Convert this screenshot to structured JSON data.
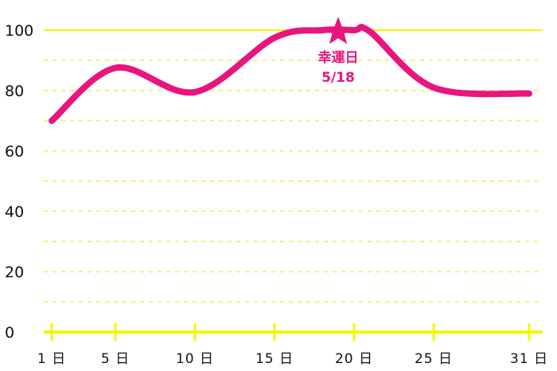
{
  "chart_data": {
    "type": "line",
    "x": [
      1,
      5,
      10,
      15,
      18,
      20,
      21,
      25,
      31
    ],
    "y": [
      70,
      87.5,
      79.5,
      97.5,
      100,
      100,
      99.5,
      81,
      79
    ],
    "x_ticks": [
      1,
      5,
      10,
      15,
      20,
      25,
      31
    ],
    "x_tick_labels": [
      "1 日",
      "5 日",
      "10 日",
      "15 日",
      "20 日",
      "25 日",
      "31 日"
    ],
    "y_ticks": [
      0,
      20,
      40,
      60,
      80,
      100
    ],
    "y_tick_labels": [
      "0",
      "20",
      "40",
      "60",
      "80",
      "100"
    ],
    "xlim": [
      1,
      31
    ],
    "ylim": [
      0,
      100
    ],
    "grid": true,
    "highlight": {
      "x": 19,
      "y": 100,
      "marker": "star-icon"
    },
    "annotation": {
      "line1": "幸運日",
      "line2": "5/18"
    },
    "colors": {
      "line": "#e8157f",
      "star": "#e8157f",
      "grid_major": "#f5f500",
      "grid_minor": "#f0f040",
      "axis": "#f5f500"
    }
  }
}
